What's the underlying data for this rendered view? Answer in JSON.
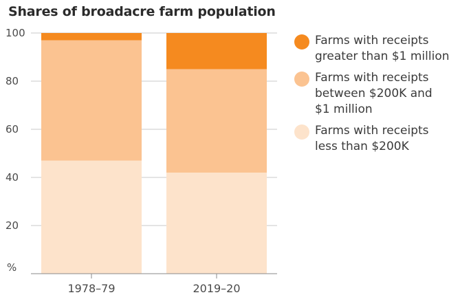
{
  "chart_data": {
    "type": "bar",
    "stacked": true,
    "title": "Shares of broadacre farm population",
    "ylabel": "%",
    "ylim": [
      0,
      100
    ],
    "yticks": [
      20,
      40,
      60,
      80,
      100
    ],
    "grid": true,
    "categories": [
      "1978–79",
      "2019–20"
    ],
    "series": [
      {
        "name": "Farms with receipts less than $200K",
        "values": [
          47,
          42
        ],
        "color": "#fde3cb"
      },
      {
        "name": "Farms with receipts between $200K and $1 million",
        "values": [
          50,
          43
        ],
        "color": "#fbc391"
      },
      {
        "name": "Farms with receipts greater than $1 million",
        "values": [
          3,
          15
        ],
        "color": "#f58a1f"
      }
    ],
    "legend_position": "right",
    "legend": [
      {
        "label": "Farms with receipts\ngreater than $1 million",
        "color": "#f58a1f"
      },
      {
        "label": "Farms with receipts\nbetween $200K and\n$1 million",
        "color": "#fbc391"
      },
      {
        "label": "Farms with receipts\nless than $200K",
        "color": "#fde3cb"
      }
    ]
  },
  "colors": {
    "gridline": "#c9c9c9",
    "axis": "#8a8a8a"
  }
}
